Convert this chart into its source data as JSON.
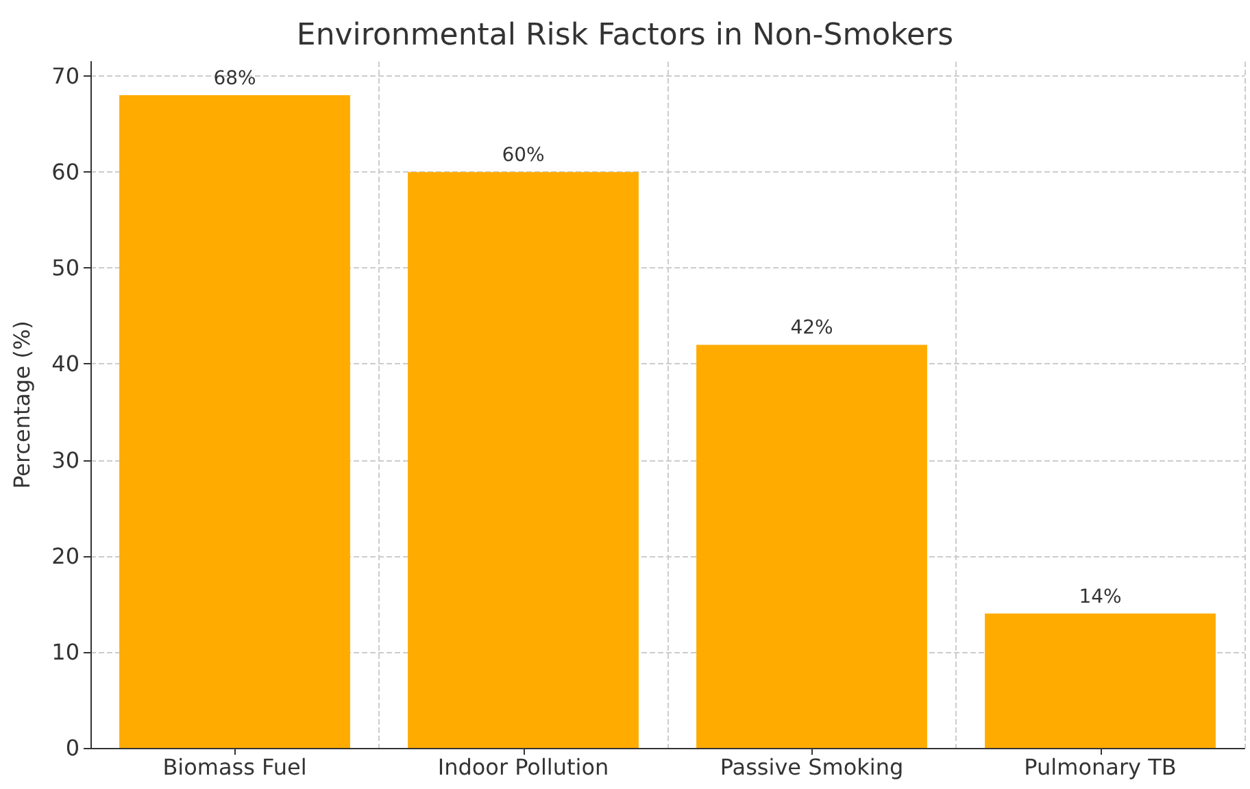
{
  "chart_data": {
    "type": "bar",
    "title": "Environmental Risk Factors in Non-Smokers",
    "ylabel": "Percentage (%)",
    "categories": [
      "Biomass Fuel",
      "Indoor Pollution",
      "Passive Smoking",
      "Pulmonary TB"
    ],
    "values": [
      68,
      60,
      42,
      14
    ],
    "value_labels": [
      "68%",
      "60%",
      "42%",
      "14%"
    ],
    "color": "#ffab00",
    "ylim": [
      0,
      71.5
    ],
    "yticks": [
      0,
      10,
      20,
      30,
      40,
      50,
      60,
      70
    ],
    "grid": true
  }
}
